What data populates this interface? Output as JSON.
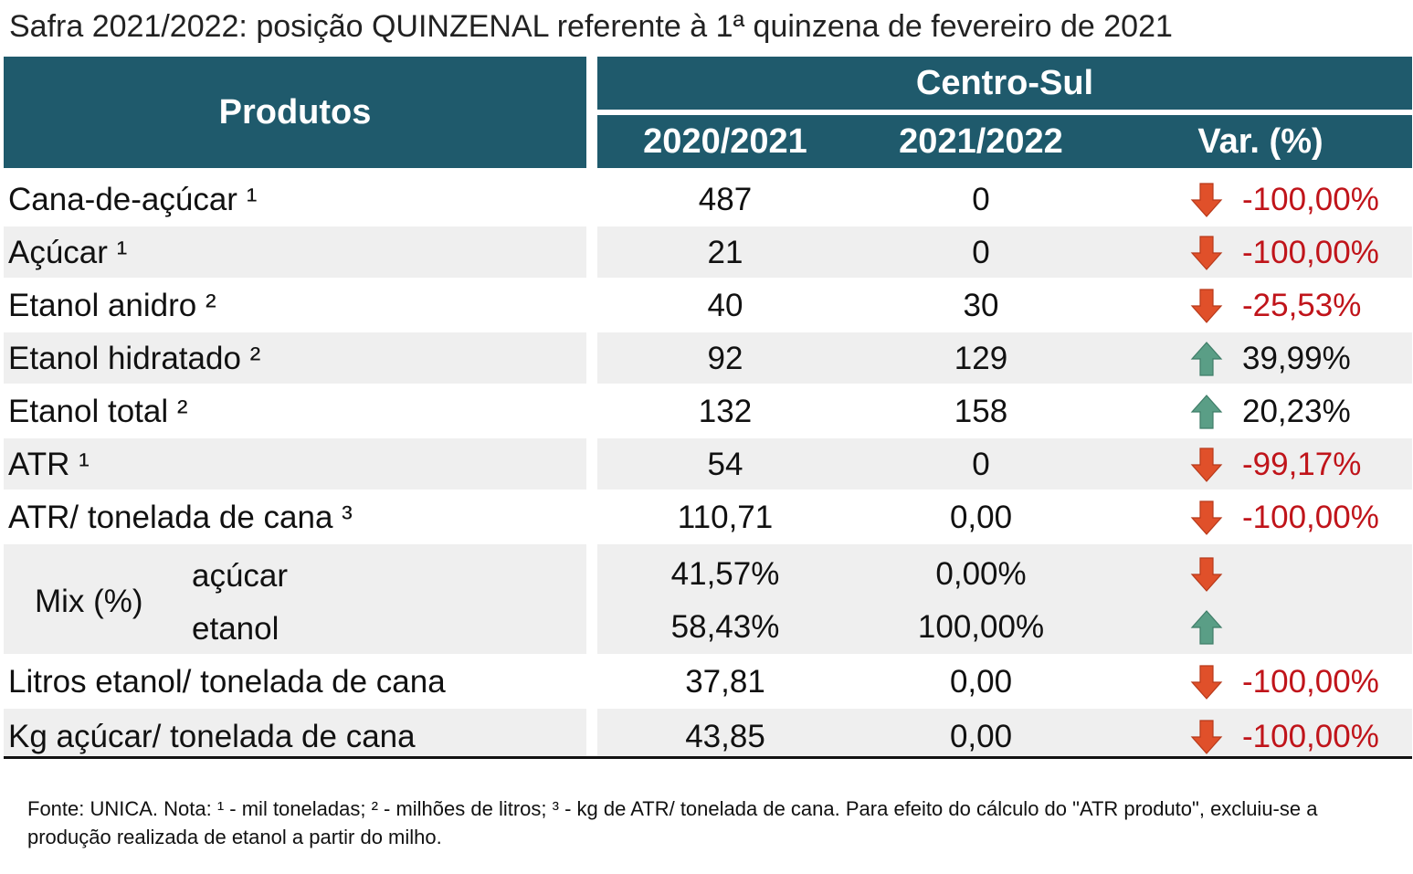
{
  "title": "Safra 2021/2022: posição QUINZENAL referente à 1ª quinzena de fevereiro de 2021",
  "header": {
    "produtos": "Produtos",
    "region": "Centro-Sul",
    "col_prev": "2020/2021",
    "col_curr": "2021/2022",
    "col_var": "Var. (%)"
  },
  "colors": {
    "header_bg": "#1f5a6c",
    "up_arrow": "#5a9e86",
    "down_arrow": "#e0502a",
    "negative_text": "#c0141a"
  },
  "rows": [
    {
      "label": "Cana-de-açúcar ¹",
      "prev": "487",
      "curr": "0",
      "var": "-100,00%",
      "trend": "down"
    },
    {
      "label": "Açúcar ¹",
      "prev": "21",
      "curr": "0",
      "var": "-100,00%",
      "trend": "down"
    },
    {
      "label": "Etanol anidro ²",
      "prev": "40",
      "curr": "30",
      "var": "-25,53%",
      "trend": "down"
    },
    {
      "label": "Etanol hidratado ²",
      "prev": "92",
      "curr": "129",
      "var": "39,99%",
      "trend": "up"
    },
    {
      "label": "Etanol total ²",
      "prev": "132",
      "curr": "158",
      "var": "20,23%",
      "trend": "up"
    },
    {
      "label": "ATR ¹",
      "prev": "54",
      "curr": "0",
      "var": "-99,17%",
      "trend": "down"
    },
    {
      "label": "ATR/ tonelada de cana ³",
      "prev": "110,71",
      "curr": "0,00",
      "var": "-100,00%",
      "trend": "down"
    }
  ],
  "mix": {
    "label": "Mix (%)",
    "acucar": {
      "label": "açúcar",
      "prev": "41,57%",
      "curr": "0,00%",
      "trend": "down"
    },
    "etanol": {
      "label": "etanol",
      "prev": "58,43%",
      "curr": "100,00%",
      "trend": "up"
    }
  },
  "rows_after": [
    {
      "label": "Litros etanol/ tonelada de cana",
      "prev": "37,81",
      "curr": "0,00",
      "var": "-100,00%",
      "trend": "down"
    },
    {
      "label": "Kg açúcar/ tonelada de cana",
      "prev": "43,85",
      "curr": "0,00",
      "var": "-100,00%",
      "trend": "down"
    }
  ],
  "footnote": "Fonte: UNICA. Nota: ¹ - mil toneladas; ² - milhões de litros; ³ - kg de ATR/ tonelada de cana. Para efeito do cálculo do \"ATR produto\", excluiu-se a produção realizada de etanol a partir do milho."
}
